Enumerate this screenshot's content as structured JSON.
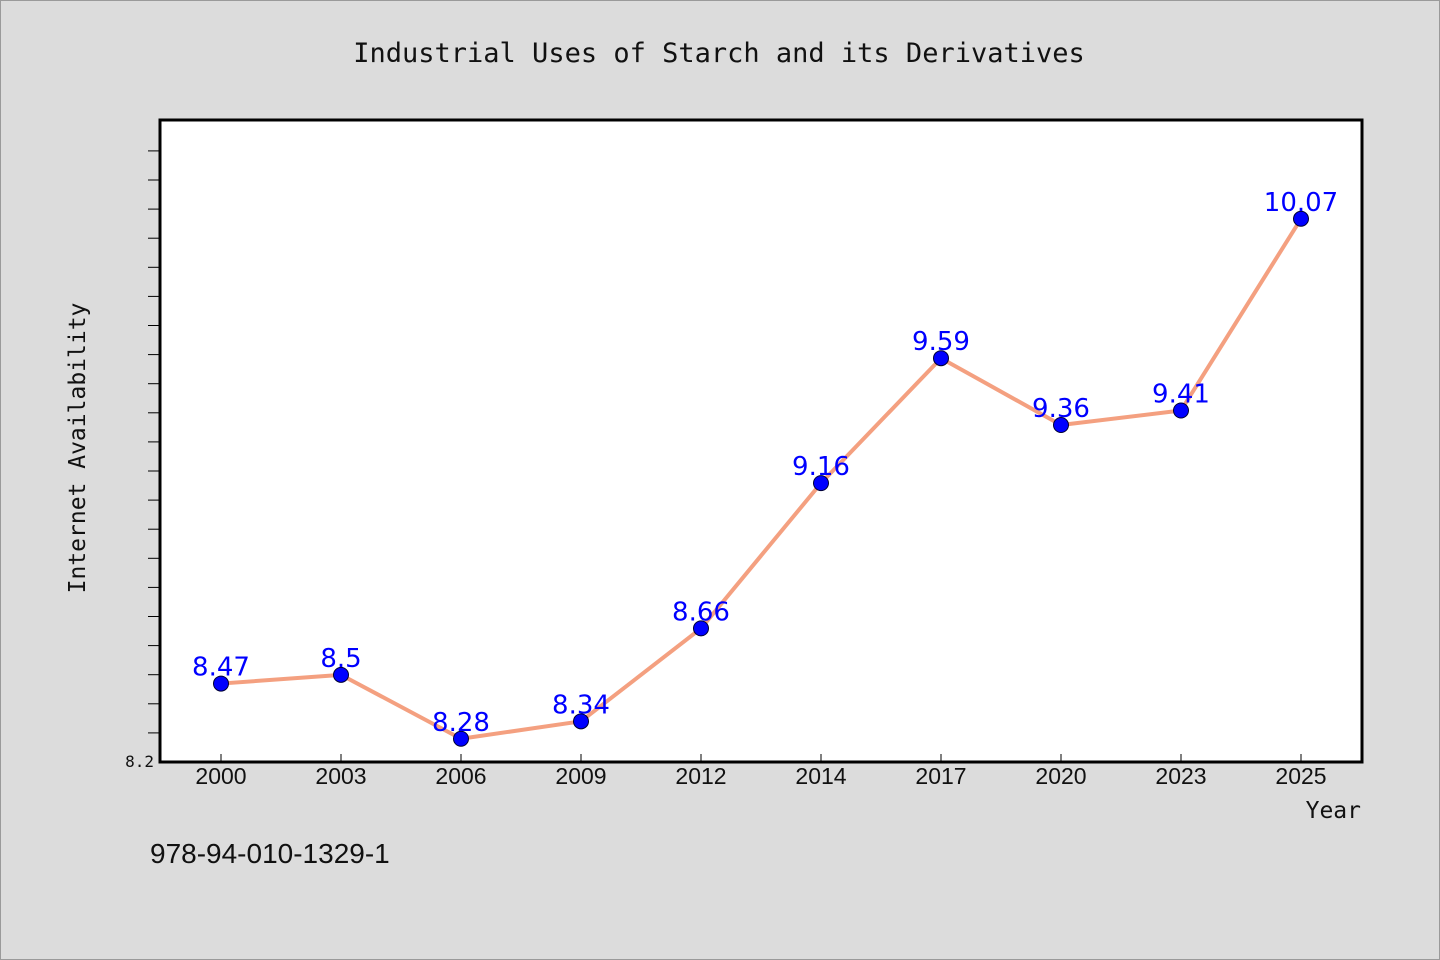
{
  "chart_data": {
    "type": "line",
    "title": "Industrial Uses of Starch and its Derivatives",
    "xlabel": "Year",
    "ylabel": "Internet Availability",
    "categories": [
      "2000",
      "2003",
      "2006",
      "2009",
      "2012",
      "2014",
      "2017",
      "2020",
      "2023",
      "2025"
    ],
    "series": [
      {
        "values": [
          8.47,
          8.5,
          8.28,
          8.34,
          8.66,
          9.16,
          9.59,
          9.36,
          9.41,
          10.07
        ],
        "data_labels": [
          "8.47",
          "8.5",
          "8.28",
          "8.34",
          "8.66",
          "9.16",
          "9.59",
          "9.36",
          "9.41",
          "10.07"
        ]
      }
    ],
    "ylim": [
      8.2,
      10.41
    ],
    "y_tick_labels": [
      "8.2"
    ],
    "grid": false,
    "legend": "none",
    "colors": {
      "line": "#f4a080",
      "marker": "#0000ff",
      "label": "#0000ff",
      "background": "#dcdcdc",
      "plot_background": "#ffffff"
    }
  },
  "footer": {
    "isbn": "978-94-010-1329-1"
  }
}
